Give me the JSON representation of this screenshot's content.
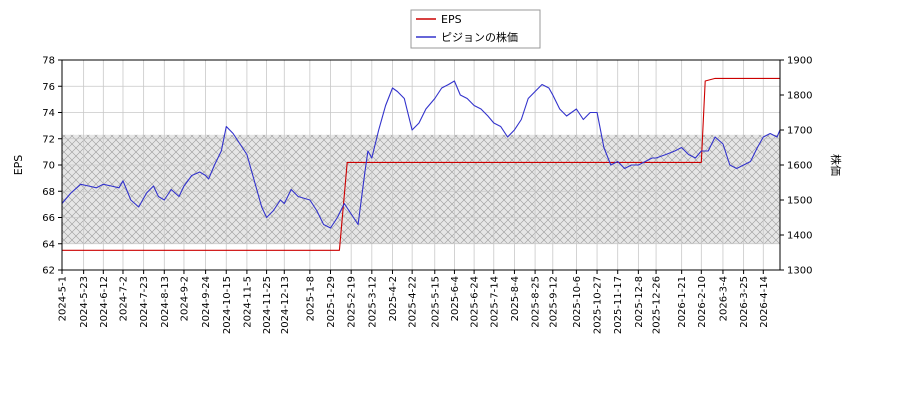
{
  "chart_data": {
    "type": "line",
    "title": "",
    "xlabel": "",
    "ylabel_left": "EPS",
    "ylabel_right": "株価",
    "ylim_left": [
      62,
      78
    ],
    "ylim_right": [
      1300,
      1900
    ],
    "yticks_left": [
      "62",
      "64",
      "66",
      "68",
      "70",
      "72",
      "74",
      "76",
      "78"
    ],
    "yticks_right": [
      "1300",
      "1400",
      "1500",
      "1600",
      "1700",
      "1800",
      "1900"
    ],
    "xlim": [
      "2024-5-1",
      "2026-5-1"
    ],
    "xticks": [
      "2024-5-1",
      "2024-5-23",
      "2024-6-12",
      "2024-7-2",
      "2024-7-23",
      "2024-8-13",
      "2024-9-2",
      "2024-9-24",
      "2024-10-15",
      "2024-11-5",
      "2024-11-25",
      "2024-12-13",
      "2025-1-8",
      "2025-1-29",
      "2025-2-19",
      "2025-3-12",
      "2025-4-2",
      "2025-4-22",
      "2025-5-15",
      "2025-6-4",
      "2025-6-24",
      "2025-7-14",
      "2025-8-4",
      "2025-8-25",
      "2025-9-12",
      "2025-10-6",
      "2025-10-27",
      "2025-11-17",
      "2025-12-8",
      "2025-12-26",
      "2026-1-21",
      "2026-2-10",
      "2026-3-4",
      "2026-3-25",
      "2026-4-14"
    ],
    "grid": true,
    "legend_position": "top-center",
    "shaded_band": {
      "axis": "left",
      "from": 64,
      "to": 72.3
    },
    "series": [
      {
        "name": "EPS",
        "axis": "left",
        "color": "#cc0000",
        "x": [
          "2024-5-1",
          "2025-2-7",
          "2025-2-15",
          "2026-2-10",
          "2026-2-14",
          "2026-2-24",
          "2026-3-4",
          "2026-5-1"
        ],
        "values": [
          63.5,
          63.5,
          70.2,
          70.2,
          76.4,
          76.6,
          76.6,
          76.6
        ]
      },
      {
        "name": "ピジョンの株価",
        "axis": "right",
        "color": "#3333cc",
        "x": [
          "2024-5-1",
          "2024-5-10",
          "2024-5-20",
          "2024-5-28",
          "2024-6-5",
          "2024-6-12",
          "2024-6-20",
          "2024-6-28",
          "2024-7-2",
          "2024-7-10",
          "2024-7-18",
          "2024-7-26",
          "2024-8-2",
          "2024-8-7",
          "2024-8-13",
          "2024-8-20",
          "2024-8-28",
          "2024-9-2",
          "2024-9-10",
          "2024-9-18",
          "2024-9-24",
          "2024-9-27",
          "2024-10-3",
          "2024-10-10",
          "2024-10-15",
          "2024-10-22",
          "2024-10-29",
          "2024-11-5",
          "2024-11-12",
          "2024-11-20",
          "2024-11-25",
          "2024-12-2",
          "2024-12-9",
          "2024-12-13",
          "2024-12-20",
          "2024-12-27",
          "2025-1-8",
          "2025-1-15",
          "2025-1-22",
          "2025-1-29",
          "2025-2-5",
          "2025-2-12",
          "2025-2-19",
          "2025-2-26",
          "2025-3-5",
          "2025-3-8",
          "2025-3-12",
          "2025-3-19",
          "2025-3-26",
          "2025-4-2",
          "2025-4-7",
          "2025-4-14",
          "2025-4-22",
          "2025-4-29",
          "2025-5-6",
          "2025-5-15",
          "2025-5-22",
          "2025-5-29",
          "2025-6-4",
          "2025-6-10",
          "2025-6-17",
          "2025-6-24",
          "2025-7-1",
          "2025-7-8",
          "2025-7-14",
          "2025-7-21",
          "2025-7-28",
          "2025-8-4",
          "2025-8-11",
          "2025-8-18",
          "2025-8-25",
          "2025-9-1",
          "2025-9-8",
          "2025-9-12",
          "2025-9-19",
          "2025-9-26",
          "2025-10-6",
          "2025-10-13",
          "2025-10-20",
          "2025-10-27",
          "2025-11-3",
          "2025-11-10",
          "2025-11-17",
          "2025-11-24",
          "2025-12-1",
          "2025-12-8",
          "2025-12-15",
          "2025-12-22",
          "2025-12-26",
          "2026-1-5",
          "2026-1-14",
          "2026-1-21",
          "2026-1-28",
          "2026-2-4",
          "2026-2-10",
          "2026-2-17",
          "2026-2-24",
          "2026-3-4",
          "2026-3-11",
          "2026-3-18",
          "2026-3-25",
          "2026-4-1",
          "2026-4-8",
          "2026-4-14",
          "2026-4-21",
          "2026-4-28",
          "2026-5-1"
        ],
        "values": [
          1490,
          1520,
          1545,
          1540,
          1535,
          1545,
          1540,
          1535,
          1555,
          1500,
          1480,
          1520,
          1540,
          1510,
          1500,
          1530,
          1510,
          1540,
          1570,
          1580,
          1570,
          1560,
          1600,
          1640,
          1710,
          1690,
          1660,
          1630,
          1560,
          1480,
          1450,
          1470,
          1500,
          1490,
          1530,
          1510,
          1500,
          1470,
          1430,
          1420,
          1450,
          1490,
          1460,
          1430,
          1580,
          1640,
          1620,
          1700,
          1770,
          1820,
          1810,
          1790,
          1700,
          1720,
          1760,
          1790,
          1820,
          1830,
          1840,
          1800,
          1790,
          1770,
          1760,
          1740,
          1720,
          1710,
          1680,
          1700,
          1730,
          1790,
          1810,
          1830,
          1820,
          1800,
          1760,
          1740,
          1760,
          1730,
          1750,
          1750,
          1650,
          1600,
          1610,
          1590,
          1600,
          1600,
          1610,
          1620,
          1620,
          1630,
          1640,
          1650,
          1630,
          1620,
          1640,
          1640,
          1680,
          1660,
          1600,
          1590,
          1600,
          1610,
          1650,
          1680,
          1690,
          1680,
          1700
        ]
      }
    ]
  }
}
